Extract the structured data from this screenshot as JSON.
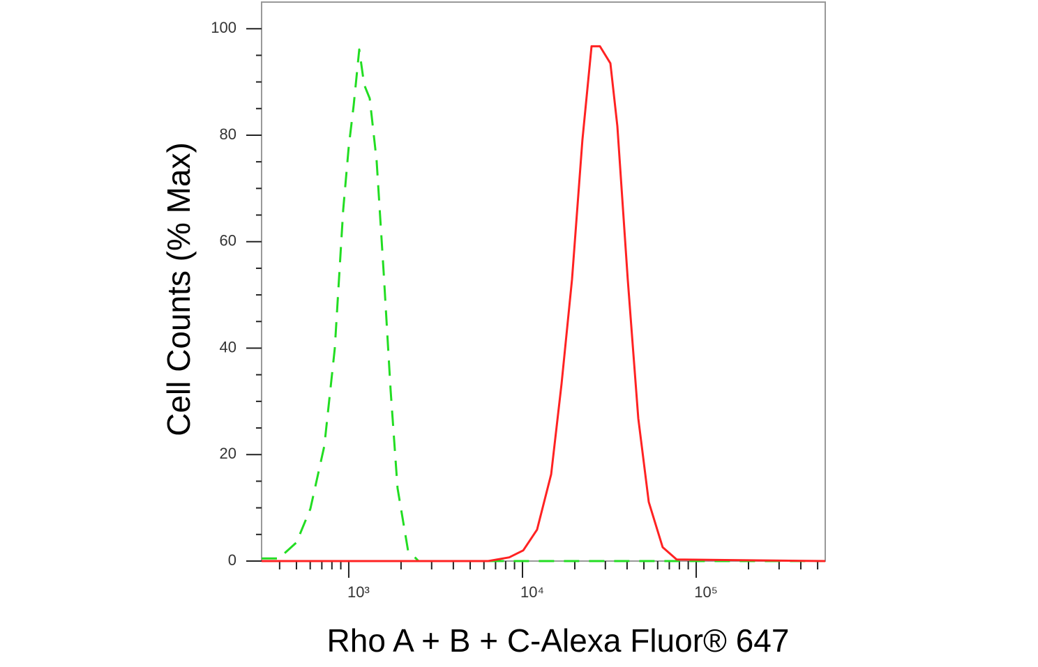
{
  "chart_data": {
    "type": "line",
    "xlabel": "Rho A + B + C-Alexa Fluor® 647",
    "ylabel": "Cell Counts (% Max)",
    "xscale": "log",
    "xlim": [
      315,
      553000
    ],
    "ylim": [
      0,
      105
    ],
    "xticks": [
      {
        "value": 1000,
        "label": "10³"
      },
      {
        "value": 10000,
        "label": "10⁴"
      },
      {
        "value": 100000,
        "label": "10⁵"
      }
    ],
    "xminorticks": [
      400,
      500,
      600,
      700,
      800,
      900,
      2000,
      3000,
      4000,
      5000,
      6000,
      7000,
      8000,
      9000,
      20000,
      30000,
      40000,
      50000,
      60000,
      70000,
      80000,
      90000,
      200000,
      300000,
      400000,
      500000
    ],
    "yticks": [
      0,
      20,
      40,
      60,
      80,
      100
    ],
    "yminorticks": [
      5,
      10,
      15,
      25,
      30,
      35,
      45,
      50,
      55,
      65,
      70,
      75,
      85,
      90,
      95
    ],
    "series": [
      {
        "color": "#22dd22",
        "dash": true,
        "x": [
          315,
          396,
          500,
          601,
          723,
          831,
          929,
          1000,
          1067,
          1149,
          1226,
          1320,
          1447,
          1588,
          1742,
          1910,
          2193,
          2522,
          16000,
          553000
        ],
        "values": [
          0.5,
          0.5,
          3.5,
          9.8,
          21.6,
          39.9,
          66,
          77.8,
          85.6,
          96.1,
          89.5,
          86.9,
          75.2,
          54.2,
          32,
          13.7,
          2,
          0,
          0,
          0
        ]
      },
      {
        "color": "#ff2222",
        "dash": false,
        "x": [
          315,
          6353,
          8390,
          10100,
          12130,
          14620,
          16790,
          19280,
          22130,
          24990,
          27920,
          32060,
          35160,
          40370,
          46400,
          53300,
          64100,
          77200,
          553000
        ],
        "values": [
          0,
          0,
          0.7,
          2,
          5.9,
          16.3,
          33.3,
          52.9,
          79.1,
          96.7,
          96.7,
          93.5,
          81.7,
          52.9,
          26.8,
          11.1,
          2.6,
          0.3,
          0
        ]
      }
    ]
  }
}
